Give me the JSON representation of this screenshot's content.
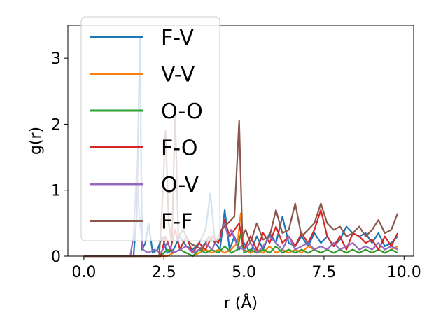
{
  "chart_data": {
    "type": "line",
    "title": "",
    "xlabel": "r (Å)",
    "ylabel": "g(r)",
    "xlim": [
      -0.5,
      10.3
    ],
    "ylim": [
      0,
      3.5
    ],
    "xticks": [
      0.0,
      2.5,
      5.0,
      7.5,
      10.0
    ],
    "xtick_labels": [
      "0.0",
      "2.5",
      "5.0",
      "7.5",
      "10.0"
    ],
    "yticks": [
      0,
      1,
      2,
      3
    ],
    "ytick_labels": [
      "0",
      "1",
      "2",
      "3"
    ],
    "grid": false,
    "legend_position": "top-left",
    "series": [
      {
        "name": "F-V",
        "color": "#1f77b4",
        "x": [
          0.0,
          1.55,
          1.65,
          1.75,
          1.82,
          1.92,
          2.02,
          2.15,
          2.3,
          2.45,
          2.6,
          2.8,
          3.0,
          3.2,
          3.4,
          3.6,
          3.8,
          3.95,
          4.1,
          4.25,
          4.4,
          4.55,
          4.7,
          4.85,
          5.0,
          5.2,
          5.4,
          5.6,
          5.8,
          6.0,
          6.2,
          6.4,
          6.6,
          6.8,
          7.0,
          7.2,
          7.4,
          7.6,
          7.8,
          8.0,
          8.2,
          8.4,
          8.6,
          8.8,
          9.0,
          9.2,
          9.4,
          9.6,
          9.8
        ],
        "y": [
          0.0,
          0.0,
          0.6,
          3.3,
          0.1,
          0.2,
          0.5,
          0.05,
          0.1,
          0.3,
          0.05,
          0.1,
          0.3,
          0.15,
          0.1,
          0.2,
          0.4,
          0.95,
          0.2,
          0.1,
          0.7,
          0.1,
          0.3,
          0.1,
          0.2,
          0.05,
          0.3,
          0.1,
          0.35,
          0.2,
          0.6,
          0.2,
          0.15,
          0.3,
          0.15,
          0.35,
          0.2,
          0.3,
          0.15,
          0.25,
          0.45,
          0.35,
          0.3,
          0.35,
          0.2,
          0.35,
          0.15,
          0.2,
          0.3
        ]
      },
      {
        "name": "V-V",
        "color": "#ff7f0e",
        "x": [
          0.0,
          2.6,
          2.8,
          3.0,
          3.2,
          3.4,
          3.6,
          3.8,
          4.0,
          4.2,
          4.4,
          4.6,
          4.8,
          4.9,
          5.0,
          5.2,
          5.4,
          5.6,
          5.8,
          6.0,
          6.2,
          6.4,
          6.6,
          6.8,
          7.0,
          7.2,
          7.4,
          7.6,
          7.8,
          8.0,
          8.2,
          8.4,
          8.6,
          8.8,
          9.0,
          9.2,
          9.4,
          9.6,
          9.8
        ],
        "y": [
          0.0,
          0.0,
          0.05,
          0.1,
          0.05,
          0.0,
          0.05,
          0.1,
          0.05,
          0.1,
          0.05,
          0.1,
          0.2,
          0.65,
          0.1,
          0.05,
          0.1,
          0.05,
          0.15,
          0.05,
          0.1,
          0.05,
          0.1,
          0.05,
          0.15,
          0.1,
          0.05,
          0.1,
          0.05,
          0.1,
          0.05,
          0.1,
          0.05,
          0.1,
          0.05,
          0.1,
          0.05,
          0.1,
          0.15
        ]
      },
      {
        "name": "O-O",
        "color": "#2ca02c",
        "x": [
          0.0,
          2.4,
          2.6,
          2.8,
          3.0,
          3.2,
          3.4,
          3.6,
          3.8,
          4.0,
          4.2,
          4.4,
          4.6,
          4.8,
          4.9,
          5.0,
          5.2,
          5.4,
          5.6,
          5.8,
          6.0,
          6.2,
          6.4,
          6.6,
          6.8,
          7.0,
          7.2,
          7.4,
          7.6,
          7.8,
          8.0,
          8.2,
          8.4,
          8.6,
          8.8,
          9.0,
          9.2,
          9.4,
          9.6,
          9.8
        ],
        "y": [
          0.0,
          0.0,
          0.1,
          0.05,
          0.1,
          0.05,
          0.0,
          0.1,
          0.05,
          0.1,
          0.05,
          0.15,
          0.05,
          0.1,
          0.35,
          0.05,
          0.1,
          0.05,
          0.1,
          0.05,
          0.15,
          0.05,
          0.1,
          0.05,
          0.1,
          0.05,
          0.1,
          0.05,
          0.1,
          0.05,
          0.1,
          0.05,
          0.1,
          0.05,
          0.1,
          0.05,
          0.1,
          0.05,
          0.1,
          0.05
        ]
      },
      {
        "name": "F-O",
        "color": "#d62728",
        "x": [
          0.0,
          2.4,
          2.55,
          2.7,
          2.85,
          3.0,
          3.2,
          3.4,
          3.6,
          3.8,
          4.0,
          4.2,
          4.4,
          4.55,
          4.7,
          4.85,
          5.0,
          5.2,
          5.4,
          5.6,
          5.8,
          6.0,
          6.2,
          6.4,
          6.6,
          6.8,
          7.0,
          7.2,
          7.4,
          7.6,
          7.8,
          8.0,
          8.2,
          8.4,
          8.6,
          8.8,
          9.0,
          9.2,
          9.4,
          9.6,
          9.8
        ],
        "y": [
          0.0,
          0.0,
          0.3,
          0.1,
          0.4,
          0.1,
          0.3,
          0.05,
          0.2,
          0.1,
          0.3,
          0.2,
          0.55,
          0.3,
          0.4,
          0.5,
          0.1,
          0.3,
          0.1,
          0.35,
          0.2,
          0.45,
          0.2,
          0.3,
          0.15,
          0.35,
          0.2,
          0.4,
          0.7,
          0.3,
          0.15,
          0.3,
          0.1,
          0.35,
          0.3,
          0.2,
          0.25,
          0.1,
          0.3,
          0.15,
          0.35
        ]
      },
      {
        "name": "O-V",
        "color": "#9467bd",
        "x": [
          0.0,
          1.45,
          1.55,
          1.65,
          1.75,
          1.85,
          2.0,
          2.2,
          2.4,
          2.6,
          2.8,
          3.0,
          3.2,
          3.4,
          3.6,
          3.8,
          4.0,
          4.2,
          4.4,
          4.5,
          4.6,
          4.8,
          5.0,
          5.2,
          5.4,
          5.6,
          5.8,
          6.0,
          6.2,
          6.4,
          6.6,
          6.8,
          7.0,
          7.2,
          7.4,
          7.6,
          7.8,
          8.0,
          8.2,
          8.4,
          8.6,
          8.8,
          9.0,
          9.2,
          9.4,
          9.6,
          9.8
        ],
        "y": [
          0.0,
          0.0,
          0.3,
          1.3,
          0.5,
          0.1,
          0.05,
          0.1,
          0.05,
          0.2,
          0.05,
          0.1,
          0.15,
          0.05,
          0.1,
          0.2,
          0.1,
          0.3,
          0.5,
          0.3,
          0.4,
          0.15,
          0.1,
          0.2,
          0.05,
          0.15,
          0.3,
          0.2,
          0.1,
          0.3,
          0.1,
          0.15,
          0.2,
          0.1,
          0.15,
          0.1,
          0.2,
          0.1,
          0.15,
          0.2,
          0.1,
          0.15,
          0.1,
          0.2,
          0.1,
          0.15,
          0.1
        ]
      },
      {
        "name": "F-F",
        "color": "#8c564b",
        "x": [
          0.0,
          2.35,
          2.45,
          2.55,
          2.65,
          2.75,
          2.85,
          2.95,
          3.1,
          3.3,
          3.5,
          3.7,
          3.9,
          4.1,
          4.3,
          4.5,
          4.7,
          4.85,
          4.95,
          5.05,
          5.2,
          5.4,
          5.6,
          5.8,
          6.0,
          6.2,
          6.4,
          6.6,
          6.8,
          7.0,
          7.2,
          7.4,
          7.6,
          7.8,
          8.0,
          8.2,
          8.4,
          8.6,
          8.8,
          9.0,
          9.2,
          9.4,
          9.6,
          9.8
        ],
        "y": [
          0.0,
          0.0,
          0.8,
          1.9,
          0.5,
          0.2,
          2.2,
          0.3,
          0.4,
          0.2,
          0.15,
          0.1,
          0.3,
          0.2,
          0.4,
          0.5,
          0.6,
          2.05,
          0.3,
          0.4,
          0.2,
          0.5,
          0.25,
          0.3,
          0.7,
          0.35,
          0.4,
          0.8,
          0.3,
          0.4,
          0.5,
          0.8,
          0.5,
          0.4,
          0.45,
          0.3,
          0.35,
          0.45,
          0.3,
          0.4,
          0.55,
          0.35,
          0.4,
          0.65
        ]
      }
    ]
  }
}
